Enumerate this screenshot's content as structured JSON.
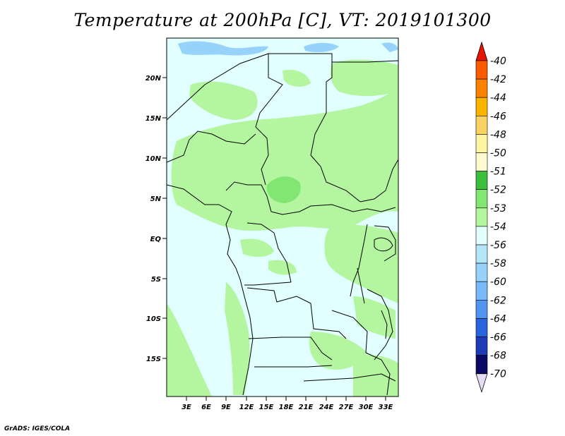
{
  "title": "Temperature at 200hPa [C], VT: 2019101300",
  "footer": "GrADS: IGES/COLA",
  "colors": {
    "background_field": "#e0fffe",
    "field_53": "#b4f5a0",
    "field_52": "#82e672",
    "field_56": "#96d2fa",
    "border": "#000000"
  },
  "map": {
    "lat_ticks": [
      "20N",
      "15N",
      "10N",
      "5N",
      "EQ",
      "5S",
      "10S",
      "15S"
    ],
    "lon_ticks": [
      "3E",
      "6E",
      "9E",
      "12E",
      "15E",
      "18E",
      "21E",
      "24E",
      "27E",
      "30E",
      "33E"
    ]
  },
  "colorbar": {
    "levels": [
      "-40",
      "-42",
      "-44",
      "-46",
      "-48",
      "-50",
      "-51",
      "-52",
      "-53",
      "-54",
      "-56",
      "-58",
      "-60",
      "-62",
      "-64",
      "-66",
      "-68",
      "-70"
    ],
    "colors": [
      "#fa3c00",
      "#fa5a00",
      "#fa8200",
      "#fab400",
      "#fad264",
      "#fff5a0",
      "#fffacd",
      "#3cbe3c",
      "#82e672",
      "#b4f5a0",
      "#e0fffe",
      "#b4e6fa",
      "#96d2fa",
      "#78b9fa",
      "#5096f0",
      "#2864dc",
      "#1e3cb4",
      "#0a0a64",
      "#e6dcf5"
    ],
    "top_arrow_color": "#e61400",
    "bottom_arrow_color": "#e6dcf5"
  }
}
